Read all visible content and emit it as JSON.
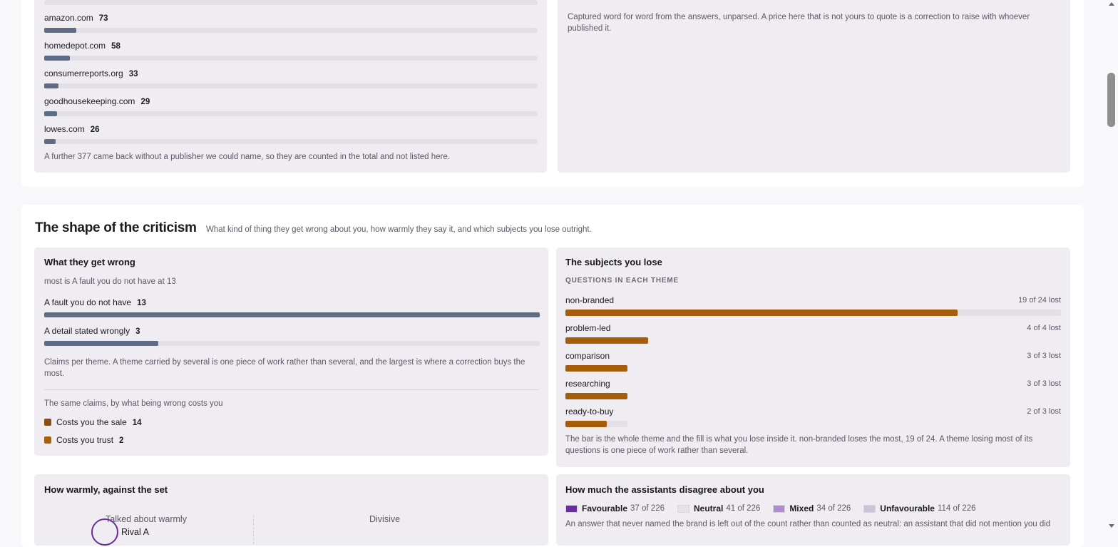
{
  "publishers": {
    "items": [
      {
        "name": "amazon.com",
        "count": 73
      },
      {
        "name": "homedepot.com",
        "count": 58
      },
      {
        "name": "consumerreports.org",
        "count": 33
      },
      {
        "name": "goodhousekeeping.com",
        "count": 29
      },
      {
        "name": "lowes.com",
        "count": 26
      }
    ],
    "color": "#5f6d84",
    "note": "A further 377 came back without a publisher we could name, so they are counted in the total and not listed here."
  },
  "quotes_panel": {
    "note": "Captured word for word from the answers, unparsed. A price here that is not yours to quote is a correction to raise with whoever published it."
  },
  "criticism": {
    "title": "The shape of the criticism",
    "subtitle": "What kind of thing they get wrong about you, how warmly they say it, and which subjects you lose outright.",
    "wrong": {
      "title": "What they get wrong",
      "summary": "most is A fault you do not have at 13",
      "items": [
        {
          "name": "A fault you do not have",
          "count": 13
        },
        {
          "name": "A detail stated wrongly",
          "count": 3
        }
      ],
      "color": "#5f6d84",
      "note": "Claims per theme. A theme carried by several is one piece of work rather than several, and the largest is where a correction buys the most.",
      "cost_title": "The same claims, by what being wrong costs you",
      "costs": [
        {
          "name": "Costs you the sale",
          "count": 14,
          "color": "#8a4f12"
        },
        {
          "name": "Costs you trust",
          "count": 2,
          "color": "#a8600c"
        }
      ]
    },
    "subjects": {
      "title": "The subjects you lose",
      "subtitle": "QUESTIONS IN EACH THEME",
      "items": [
        {
          "name": "non-branded",
          "lost": 19,
          "total": 24,
          "label": "19 of 24 lost"
        },
        {
          "name": "problem-led",
          "lost": 4,
          "total": 4,
          "label": "4 of 4 lost"
        },
        {
          "name": "comparison",
          "lost": 3,
          "total": 3,
          "label": "3 of 3 lost"
        },
        {
          "name": "researching",
          "lost": 3,
          "total": 3,
          "label": "3 of 3 lost"
        },
        {
          "name": "ready-to-buy",
          "lost": 2,
          "total": 3,
          "label": "2 of 3 lost"
        }
      ],
      "color": "#a65d0a",
      "track_color": "#e2dfe6",
      "note": "The bar is the whole theme and the fill is what you lose inside it. non-branded loses the most, 19 of 24. A theme losing most of its questions is one piece of work rather than several."
    },
    "warmth": {
      "title": "How warmly, against the set",
      "labels": [
        "Talked about warmly",
        "Divisive"
      ],
      "point": "Rival A"
    },
    "disagreement": {
      "title": "How much the assistants disagree about you",
      "legend": [
        {
          "name": "Favourable",
          "label": "37 of 226",
          "color": "#6a2c9e"
        },
        {
          "name": "Neutral",
          "label": "41 of 226",
          "color": "#e4e2e8"
        },
        {
          "name": "Mixed",
          "label": "34 of 226",
          "color": "#b08bd0"
        },
        {
          "name": "Unfavourable",
          "label": "114 of 226",
          "color": "#cbc3d6"
        }
      ],
      "note": "An answer that never named the brand is left out of the count rather than counted as neutral: an assistant that did not mention you did"
    }
  }
}
